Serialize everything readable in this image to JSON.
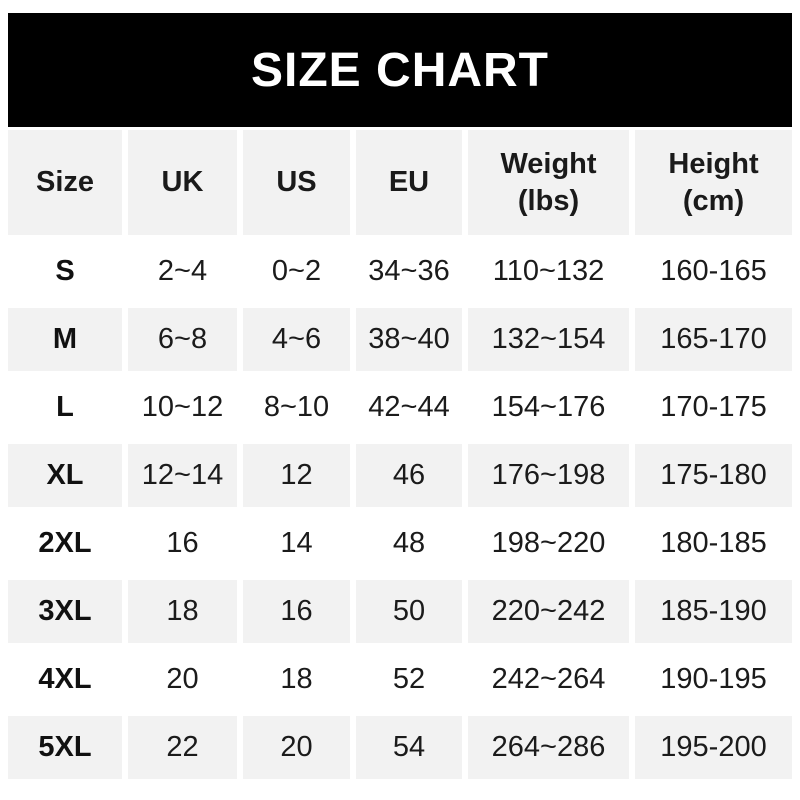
{
  "title": "SIZE CHART",
  "colors": {
    "banner_bg": "#000000",
    "banner_text": "#ffffff",
    "row_alt_bg": "#f2f2f2",
    "row_bg": "#ffffff",
    "text": "#1b1b1b"
  },
  "table": {
    "headers": [
      {
        "line1": "Size",
        "line2": ""
      },
      {
        "line1": "UK",
        "line2": ""
      },
      {
        "line1": "US",
        "line2": ""
      },
      {
        "line1": "EU",
        "line2": ""
      },
      {
        "line1": "Weight",
        "line2": "(lbs)"
      },
      {
        "line1": "Height",
        "line2": "(cm)"
      }
    ],
    "rows": [
      {
        "size": "S",
        "uk": "2~4",
        "us": "0~2",
        "eu": "34~36",
        "weight_lbs": "110~132",
        "height_cm": "160-165"
      },
      {
        "size": "M",
        "uk": "6~8",
        "us": "4~6",
        "eu": "38~40",
        "weight_lbs": "132~154",
        "height_cm": "165-170"
      },
      {
        "size": "L",
        "uk": "10~12",
        "us": "8~10",
        "eu": "42~44",
        "weight_lbs": "154~176",
        "height_cm": "170-175"
      },
      {
        "size": "XL",
        "uk": "12~14",
        "us": "12",
        "eu": "46",
        "weight_lbs": "176~198",
        "height_cm": "175-180"
      },
      {
        "size": "2XL",
        "uk": "16",
        "us": "14",
        "eu": "48",
        "weight_lbs": "198~220",
        "height_cm": "180-185"
      },
      {
        "size": "3XL",
        "uk": "18",
        "us": "16",
        "eu": "50",
        "weight_lbs": "220~242",
        "height_cm": "185-190"
      },
      {
        "size": "4XL",
        "uk": "20",
        "us": "18",
        "eu": "52",
        "weight_lbs": "242~264",
        "height_cm": "190-195"
      },
      {
        "size": "5XL",
        "uk": "22",
        "us": "20",
        "eu": "54",
        "weight_lbs": "264~286",
        "height_cm": "195-200"
      }
    ]
  },
  "chart_data": {
    "type": "table",
    "title": "SIZE CHART",
    "columns": [
      "Size",
      "UK",
      "US",
      "EU",
      "Weight (lbs)",
      "Height (cm)"
    ],
    "rows": [
      [
        "S",
        "2~4",
        "0~2",
        "34~36",
        "110~132",
        "160-165"
      ],
      [
        "M",
        "6~8",
        "4~6",
        "38~40",
        "132~154",
        "165-170"
      ],
      [
        "L",
        "10~12",
        "8~10",
        "42~44",
        "154~176",
        "170-175"
      ],
      [
        "XL",
        "12~14",
        "12",
        "46",
        "176~198",
        "175-180"
      ],
      [
        "2XL",
        "16",
        "14",
        "48",
        "198~220",
        "180-185"
      ],
      [
        "3XL",
        "18",
        "16",
        "50",
        "220~242",
        "185-190"
      ],
      [
        "4XL",
        "20",
        "18",
        "52",
        "242~264",
        "190-195"
      ],
      [
        "5XL",
        "22",
        "20",
        "54",
        "264~286",
        "195-200"
      ]
    ],
    "layout": {
      "header_background": "#f2f2f2",
      "alternating_rows": true,
      "grid": "off",
      "weight_range_separator": "~",
      "height_range_separator": "-"
    }
  }
}
